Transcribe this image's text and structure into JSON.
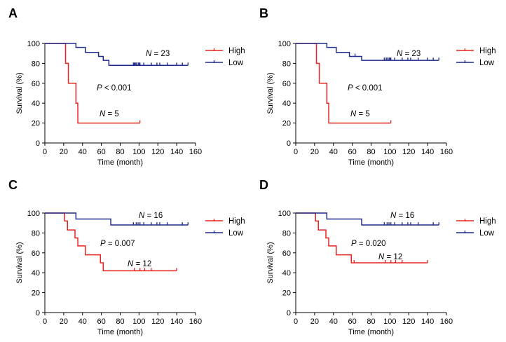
{
  "figure": {
    "panel_labels": [
      "A",
      "B",
      "C",
      "D"
    ]
  },
  "chart_data": [
    {
      "panel": "A",
      "type": "line",
      "subtype": "kaplan-meier",
      "xlabel": "Time (month)",
      "ylabel": "Survival (%)",
      "xlim": [
        0,
        160
      ],
      "ylim": [
        0,
        100
      ],
      "xticks": [
        0,
        20,
        40,
        60,
        80,
        100,
        120,
        140,
        160
      ],
      "yticks": [
        0,
        20,
        40,
        60,
        80,
        100
      ],
      "legend_position": "top-right",
      "p_value": "< 0.001",
      "series": [
        {
          "name": "High",
          "color": "#e8231f",
          "n_label": "N = 5",
          "steps": [
            [
              0,
              100
            ],
            [
              22,
              80
            ],
            [
              25,
              60
            ],
            [
              33,
              40
            ],
            [
              35,
              20
            ],
            [
              101,
              20
            ]
          ],
          "censors": [
            [
              101,
              20
            ]
          ]
        },
        {
          "name": "Low",
          "color": "#1b2a8c",
          "n_label": "N = 23",
          "steps": [
            [
              0,
              100
            ],
            [
              33,
              96
            ],
            [
              43,
              91
            ],
            [
              57,
              87
            ],
            [
              62,
              83
            ],
            [
              68,
              78
            ],
            [
              152,
              78
            ]
          ],
          "censors": [
            [
              94,
              78
            ],
            [
              95,
              78
            ],
            [
              96,
              78
            ],
            [
              97,
              78
            ],
            [
              99,
              78
            ],
            [
              100,
              78
            ],
            [
              101,
              78
            ],
            [
              105,
              78
            ],
            [
              113,
              78
            ],
            [
              119,
              78
            ],
            [
              122,
              78
            ],
            [
              130,
              78
            ],
            [
              140,
              78
            ],
            [
              146,
              78
            ],
            [
              152,
              78
            ]
          ]
        }
      ]
    },
    {
      "panel": "B",
      "type": "line",
      "subtype": "kaplan-meier",
      "xlabel": "Time (month)",
      "ylabel": "Survival (%)",
      "xlim": [
        0,
        160
      ],
      "ylim": [
        0,
        100
      ],
      "xticks": [
        0,
        20,
        40,
        60,
        80,
        100,
        120,
        140,
        160
      ],
      "yticks": [
        0,
        20,
        40,
        60,
        80,
        100
      ],
      "legend_position": "top-right",
      "p_value": "< 0.001",
      "series": [
        {
          "name": "High",
          "color": "#e8231f",
          "n_label": "N = 5",
          "steps": [
            [
              0,
              100
            ],
            [
              22,
              80
            ],
            [
              25,
              60
            ],
            [
              33,
              40
            ],
            [
              35,
              20
            ],
            [
              101,
              20
            ]
          ],
          "censors": [
            [
              101,
              20
            ]
          ]
        },
        {
          "name": "Low",
          "color": "#1b2a8c",
          "n_label": "N = 23",
          "steps": [
            [
              0,
              100
            ],
            [
              33,
              96
            ],
            [
              43,
              91
            ],
            [
              57,
              87
            ],
            [
              70,
              83
            ],
            [
              152,
              83
            ]
          ],
          "censors": [
            [
              63,
              87
            ],
            [
              94,
              83
            ],
            [
              96,
              83
            ],
            [
              97,
              83
            ],
            [
              99,
              83
            ],
            [
              100,
              83
            ],
            [
              101,
              83
            ],
            [
              105,
              83
            ],
            [
              113,
              83
            ],
            [
              119,
              83
            ],
            [
              122,
              83
            ],
            [
              130,
              83
            ],
            [
              140,
              83
            ],
            [
              146,
              83
            ],
            [
              152,
              83
            ]
          ]
        }
      ]
    },
    {
      "panel": "C",
      "type": "line",
      "subtype": "kaplan-meier",
      "xlabel": "Time (month)",
      "ylabel": "Survival (%)",
      "xlim": [
        0,
        160
      ],
      "ylim": [
        0,
        100
      ],
      "xticks": [
        0,
        20,
        40,
        60,
        80,
        100,
        120,
        140,
        160
      ],
      "yticks": [
        0,
        20,
        40,
        60,
        80,
        100
      ],
      "legend_position": "top-right",
      "p_value": "= 0.007",
      "series": [
        {
          "name": "High",
          "color": "#e8231f",
          "n_label": "N = 12",
          "steps": [
            [
              0,
              100
            ],
            [
              21,
              92
            ],
            [
              24,
              83
            ],
            [
              32,
              75
            ],
            [
              35,
              67
            ],
            [
              43,
              58
            ],
            [
              59,
              50
            ],
            [
              62,
              42
            ],
            [
              140,
              42
            ]
          ],
          "censors": [
            [
              95,
              42
            ],
            [
              101,
              42
            ],
            [
              106,
              42
            ],
            [
              113,
              42
            ],
            [
              140,
              42
            ]
          ]
        },
        {
          "name": "Low",
          "color": "#1b2a8c",
          "n_label": "N = 16",
          "steps": [
            [
              0,
              100
            ],
            [
              33,
              94
            ],
            [
              70,
              88
            ],
            [
              152,
              88
            ]
          ],
          "censors": [
            [
              94,
              88
            ],
            [
              97,
              88
            ],
            [
              99,
              88
            ],
            [
              101,
              88
            ],
            [
              105,
              88
            ],
            [
              113,
              88
            ],
            [
              119,
              88
            ],
            [
              122,
              88
            ],
            [
              130,
              88
            ],
            [
              146,
              88
            ],
            [
              152,
              88
            ]
          ]
        }
      ]
    },
    {
      "panel": "D",
      "type": "line",
      "subtype": "kaplan-meier",
      "xlabel": "Time (month)",
      "ylabel": "Survival (%)",
      "xlim": [
        0,
        160
      ],
      "ylim": [
        0,
        100
      ],
      "xticks": [
        0,
        20,
        40,
        60,
        80,
        100,
        120,
        140,
        160
      ],
      "yticks": [
        0,
        20,
        40,
        60,
        80,
        100
      ],
      "legend_position": "top-right",
      "p_value": "= 0.020",
      "series": [
        {
          "name": "High",
          "color": "#e8231f",
          "n_label": "N = 12",
          "steps": [
            [
              0,
              100
            ],
            [
              21,
              92
            ],
            [
              24,
              83
            ],
            [
              32,
              75
            ],
            [
              35,
              67
            ],
            [
              43,
              58
            ],
            [
              59,
              50
            ],
            [
              140,
              50
            ]
          ],
          "censors": [
            [
              62,
              50
            ],
            [
              95,
              50
            ],
            [
              101,
              50
            ],
            [
              106,
              50
            ],
            [
              113,
              50
            ],
            [
              140,
              50
            ]
          ]
        },
        {
          "name": "Low",
          "color": "#1b2a8c",
          "n_label": "N = 16",
          "steps": [
            [
              0,
              100
            ],
            [
              33,
              94
            ],
            [
              70,
              88
            ],
            [
              152,
              88
            ]
          ],
          "censors": [
            [
              94,
              88
            ],
            [
              97,
              88
            ],
            [
              99,
              88
            ],
            [
              101,
              88
            ],
            [
              105,
              88
            ],
            [
              113,
              88
            ],
            [
              119,
              88
            ],
            [
              122,
              88
            ],
            [
              130,
              88
            ],
            [
              146,
              88
            ],
            [
              152,
              88
            ]
          ]
        }
      ]
    }
  ]
}
